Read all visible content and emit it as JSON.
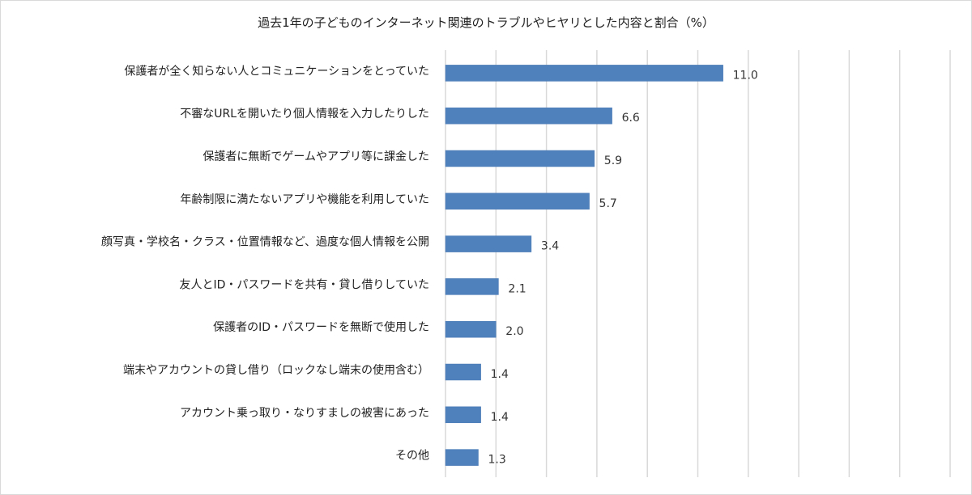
{
  "chart_data": {
    "type": "bar",
    "orientation": "horizontal",
    "title": "過去1年の子どものインターネット関連のトラブルやヒヤリとした内容と割合（%）",
    "categories": [
      "保護者が全く知らない人とコミュニケーションをとっていた",
      "不審なURLを開いたり個人情報を入力したりした",
      "保護者に無断でゲームやアプリ等に課金した",
      "年齢制限に満たないアプリや機能を利用していた",
      "顔写真・学校名・クラス・位置情報など、過度な個人情報を公開",
      "友人とID・パスワードを共有・貸し借りしていた",
      "保護者のID・パスワードを無断で使用した",
      "端末やアカウントの貸し借り（ロックなし端末の使用含む）",
      "アカウント乗っ取り・なりすましの被害にあった",
      "その他"
    ],
    "values": [
      11.0,
      6.6,
      5.9,
      5.7,
      3.4,
      2.1,
      2.0,
      1.4,
      1.4,
      1.3
    ],
    "data_labels": [
      "11.0",
      "6.6",
      "5.9",
      "5.7",
      "3.4",
      "2.1",
      "2.0",
      "1.4",
      "1.4",
      "1.3"
    ],
    "xlim": [
      0,
      20
    ],
    "grid_step": 2,
    "grid": true,
    "legend": "none",
    "bar_color": "#4f81bd",
    "grid_color": "#d9d9d9"
  }
}
